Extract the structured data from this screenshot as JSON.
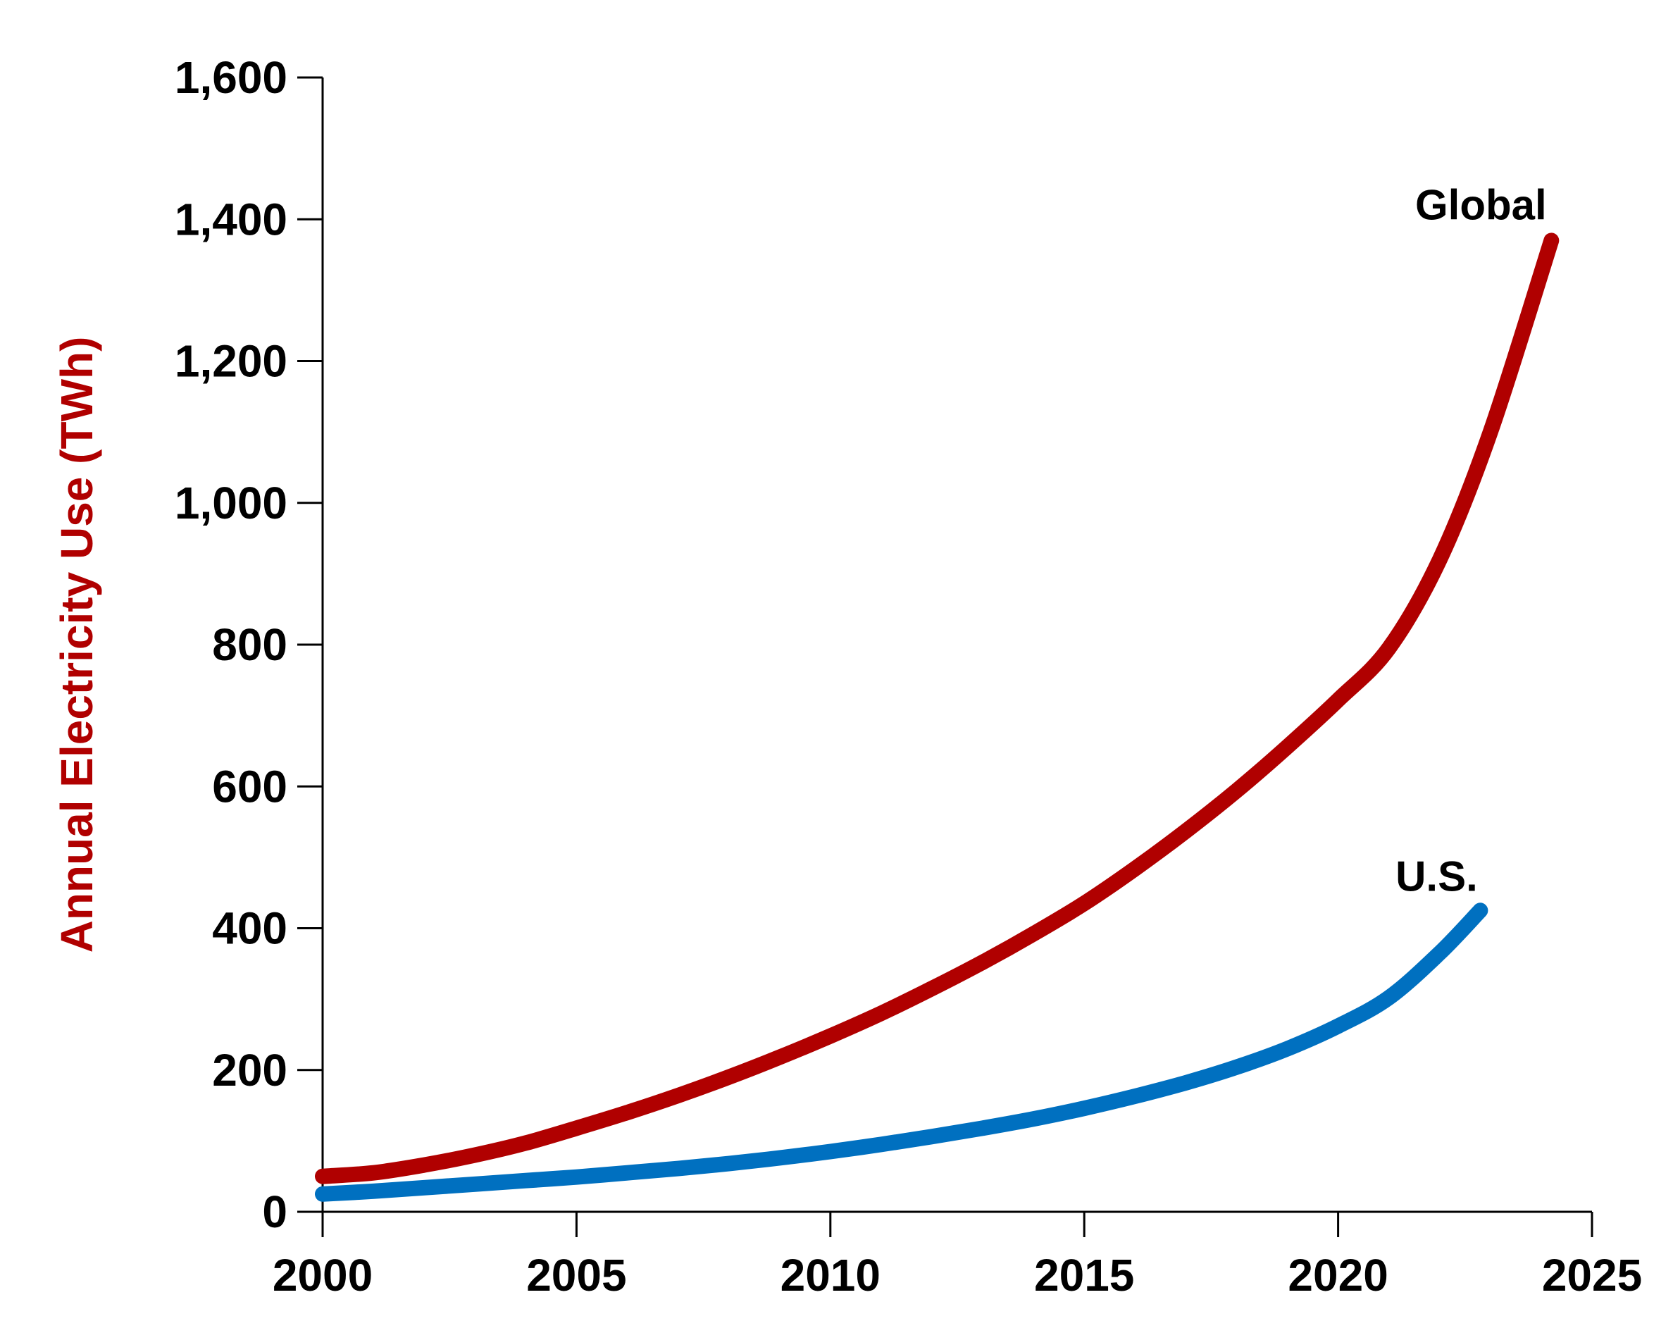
{
  "chart_data": {
    "type": "line",
    "title": "",
    "xlabel": "",
    "ylabel": "Annual Electricity Use (TWh)",
    "ylabel_color": "#b00000",
    "xlim": [
      2000,
      2025
    ],
    "ylim": [
      0,
      1600
    ],
    "x_ticks": [
      2000,
      2005,
      2010,
      2015,
      2020,
      2025
    ],
    "y_ticks": [
      0,
      200,
      400,
      600,
      800,
      1000,
      1200,
      1400,
      1600
    ],
    "x_tick_labels": [
      "2000",
      "2005",
      "2010",
      "2015",
      "2020",
      "2025"
    ],
    "y_tick_labels": [
      "0",
      "200",
      "400",
      "600",
      "800",
      "1,000",
      "1,200",
      "1,400",
      "1,600"
    ],
    "grid": false,
    "legend": "none (inline series labels)",
    "series": [
      {
        "name": "Global",
        "color": "#b00000",
        "x": [
          2000,
          2001,
          2002,
          2003,
          2004,
          2005,
          2006,
          2007,
          2008,
          2009,
          2010,
          2011,
          2012,
          2013,
          2014,
          2015,
          2016,
          2017,
          2018,
          2019,
          2020,
          2021,
          2022,
          2023,
          2024.2
        ],
        "y": [
          50,
          55,
          66,
          80,
          97,
          118,
          140,
          164,
          190,
          218,
          248,
          280,
          315,
          352,
          392,
          435,
          484,
          537,
          594,
          656,
          722,
          795,
          920,
          1100,
          1370
        ]
      },
      {
        "name": "U.S.",
        "color": "#0070c0",
        "x": [
          2000,
          2001,
          2002,
          2003,
          2004,
          2005,
          2006,
          2007,
          2008,
          2009,
          2010,
          2011,
          2012,
          2013,
          2014,
          2015,
          2016,
          2017,
          2018,
          2019,
          2020,
          2021,
          2022,
          2022.8
        ],
        "y": [
          25,
          29,
          34,
          39,
          44,
          49,
          55,
          61,
          68,
          76,
          85,
          95,
          106,
          118,
          131,
          146,
          163,
          182,
          204,
          230,
          262,
          302,
          365,
          425
        ]
      }
    ]
  }
}
